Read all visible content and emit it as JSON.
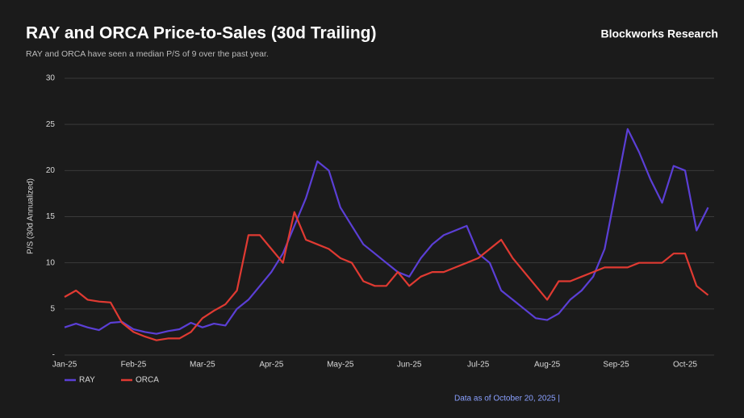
{
  "brand": "Blockworks Research",
  "footer": "Data as of October 20, 2025 |",
  "chart_data": {
    "type": "line",
    "title": "RAY and ORCA Price-to-Sales (30d Trailing)",
    "subtitle": "RAY and ORCA have seen a median P/S of 9 over the past year.",
    "y_label": "P/S  (30d Annualized)",
    "categories": [
      "Jan-25",
      null,
      null,
      null,
      null,
      null,
      "Feb-25",
      null,
      null,
      null,
      null,
      null,
      "Mar-25",
      null,
      null,
      null,
      null,
      null,
      "Apr-25",
      null,
      null,
      null,
      null,
      null,
      "May-25",
      null,
      null,
      null,
      null,
      null,
      "Jun-25",
      null,
      null,
      null,
      null,
      null,
      "Jul-25",
      null,
      null,
      null,
      null,
      null,
      "Aug-25",
      null,
      null,
      null,
      null,
      null,
      "Sep-25",
      null,
      null,
      null,
      null,
      null,
      "Oct-25",
      null,
      null
    ],
    "series": [
      {
        "name": "RAY",
        "color": "#5b3fd6",
        "values": [
          3.0,
          3.4,
          3.0,
          2.7,
          3.5,
          3.6,
          2.8,
          2.5,
          2.3,
          2.6,
          2.8,
          3.5,
          3.0,
          3.4,
          3.2,
          5.0,
          6.0,
          7.5,
          9.0,
          11.0,
          14.0,
          17.0,
          21.0,
          20.0,
          16.0,
          14.0,
          12.0,
          11.0,
          10.0,
          9.0,
          8.5,
          10.5,
          12.0,
          13.0,
          13.5,
          14.0,
          11.0,
          10.0,
          7.0,
          6.0,
          5.0,
          4.0,
          3.8,
          4.5,
          6.0,
          7.0,
          8.5,
          11.5,
          18.0,
          24.5,
          22.0,
          19.0,
          16.5,
          20.5,
          20.0,
          13.5,
          16.0
        ]
      },
      {
        "name": "ORCA",
        "color": "#e03a32",
        "values": [
          6.3,
          7.0,
          6.0,
          5.8,
          5.7,
          3.5,
          2.5,
          2.0,
          1.6,
          1.8,
          1.8,
          2.5,
          4.0,
          4.8,
          5.5,
          7.0,
          13.0,
          13.0,
          11.5,
          10.0,
          15.5,
          12.5,
          12.0,
          11.5,
          10.5,
          10.0,
          8.0,
          7.5,
          7.5,
          9.0,
          7.5,
          8.5,
          9.0,
          9.0,
          9.5,
          10.0,
          10.5,
          11.5,
          12.5,
          10.5,
          9.0,
          7.5,
          6.0,
          8.0,
          8.0,
          8.5,
          9.0,
          9.5,
          9.5,
          9.5,
          10.0,
          10.0,
          10.0,
          11.0,
          11.0,
          7.5,
          6.5
        ]
      }
    ],
    "ylim": [
      0,
      30
    ],
    "yticks": [
      {
        "value": 0,
        "label": "-"
      },
      5,
      10,
      15,
      20,
      25,
      30
    ],
    "grid": true,
    "legend": "bottom-left"
  }
}
